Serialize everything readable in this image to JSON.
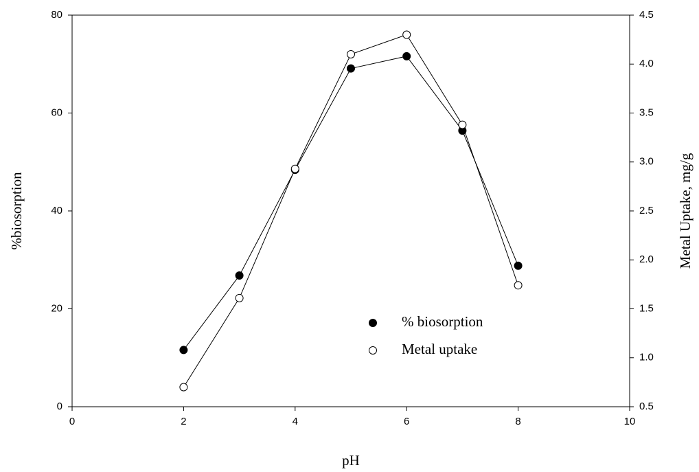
{
  "chart_data": {
    "type": "line",
    "x_label": "pH",
    "y_label": "%biosorption",
    "y2_label": "Metal Uptake, mg/g",
    "xlim": [
      0,
      10
    ],
    "xticks": [
      0,
      2,
      4,
      6,
      8,
      10
    ],
    "ylim": [
      0,
      80
    ],
    "yticks": [
      0,
      20,
      40,
      60,
      80
    ],
    "y2lim": [
      0.5,
      4.5
    ],
    "y2ticks": [
      0.5,
      {
        "value": 1,
        "label": "1.0"
      },
      1.5,
      {
        "value": 2,
        "label": "2.0"
      },
      2.5,
      {
        "value": 3,
        "label": "3.0"
      },
      3.5,
      {
        "value": 4,
        "label": "4.0"
      },
      4.5
    ],
    "grid": false,
    "x": [
      2,
      3,
      4,
      5,
      6,
      7,
      8
    ],
    "series": [
      {
        "name": "% biosorption",
        "color": "#000000",
        "marker_fill": "#000000",
        "values": [
          11.6,
          26.8,
          48.4,
          69.1,
          71.6,
          56.4,
          28.8
        ]
      },
      {
        "name": "Metal uptake",
        "color": "#000000",
        "marker_fill": "#ffffff",
        "axis": "y2",
        "values": [
          0.7,
          1.61,
          2.93,
          4.1,
          4.3,
          3.38,
          1.74
        ]
      }
    ]
  }
}
